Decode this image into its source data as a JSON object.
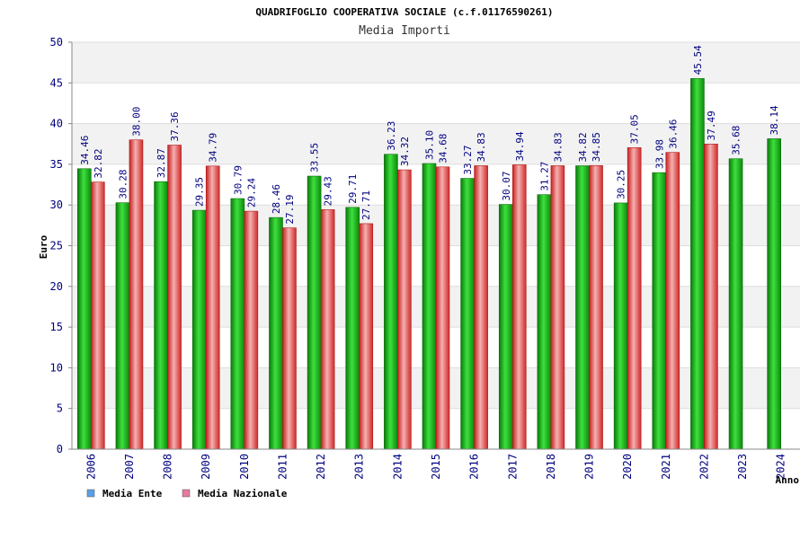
{
  "chart_data": {
    "type": "bar",
    "title": "QUADRIFOGLIO COOPERATIVA SOCIALE (c.f.01176590261)",
    "subtitle": "Media Importi",
    "xlabel": "Anno",
    "ylabel": "Euro",
    "ylim": [
      0,
      50
    ],
    "yticks": [
      "0",
      "5",
      "10",
      "15",
      "20",
      "25",
      "30",
      "35",
      "40",
      "45",
      "50"
    ],
    "grid": true,
    "legend_position": "bottom-left",
    "categories": [
      "2006",
      "2007",
      "2008",
      "2009",
      "2010",
      "2011",
      "2012",
      "2013",
      "2014",
      "2015",
      "2016",
      "2017",
      "2018",
      "2019",
      "2020",
      "2021",
      "2022",
      "2023",
      "2024"
    ],
    "series": [
      {
        "name": "Media Ente",
        "color": "#1ea51e",
        "legend_color": "#5aa0e6",
        "values": [
          34.46,
          30.28,
          32.87,
          29.35,
          30.79,
          28.46,
          33.55,
          29.71,
          36.23,
          35.1,
          33.27,
          30.07,
          31.27,
          34.82,
          30.25,
          33.98,
          45.54,
          35.68,
          38.14
        ],
        "labels": [
          "34.46",
          "30.28",
          "32.87",
          "29.35",
          "30.79",
          "28.46",
          "33.55",
          "29.71",
          "36.23",
          "35.10",
          "33.27",
          "30.07",
          "31.27",
          "34.82",
          "30.25",
          "33.98",
          "45.54",
          "35.68",
          "38.14"
        ]
      },
      {
        "name": "Media Nazionale",
        "color": "#e03c3c",
        "legend_color": "#e67a9e",
        "values": [
          32.82,
          38.0,
          37.36,
          34.79,
          29.24,
          27.19,
          29.43,
          27.71,
          34.32,
          34.68,
          34.83,
          34.94,
          34.83,
          34.85,
          37.05,
          36.46,
          37.49,
          null,
          null
        ],
        "labels": [
          "32.82",
          "38.00",
          "37.36",
          "34.79",
          "29.24",
          "27.19",
          "29.43",
          "27.71",
          "34.32",
          "34.68",
          "34.83",
          "34.94",
          "34.83",
          "34.85",
          "37.05",
          "36.46",
          "37.49",
          null,
          null
        ]
      }
    ]
  }
}
